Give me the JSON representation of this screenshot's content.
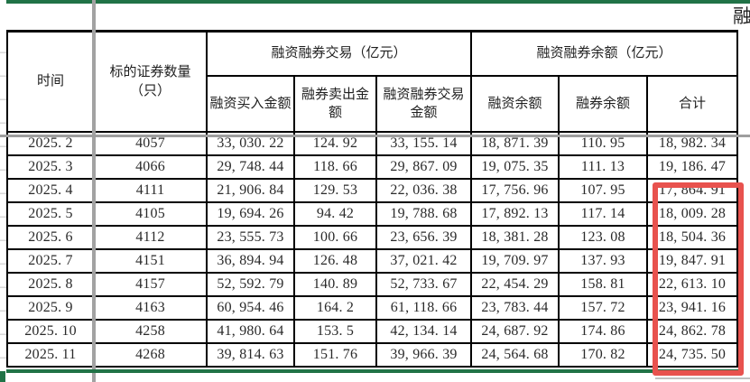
{
  "sheet": {
    "clipped_top_right_text": "融",
    "selection_border_color": "#217347",
    "pane_split_color": "#a2a2a2"
  },
  "table": {
    "header": {
      "time": "时间",
      "securities_count": "标的证券数量（只）",
      "trade_group": "融资融券交易（亿元）",
      "balance_group": "融资融券余额（亿元）",
      "sub": [
        "融资买入金额",
        "融券卖出金额",
        "融资融券交易金额",
        "融资余额",
        "融券余额",
        "合计"
      ]
    },
    "column_keys": [
      "time",
      "securities-count",
      "financing-buy-amount",
      "short-sell-amount",
      "margin-trade-amount",
      "financing-balance",
      "short-balance",
      "total"
    ],
    "rows": [
      [
        "2025. 2",
        "4057",
        "33, 030. 22",
        "124. 92",
        "33, 155. 14",
        "18, 871. 39",
        "110. 95",
        "18, 982. 34"
      ],
      [
        "2025. 3",
        "4066",
        "29, 748. 44",
        "118. 66",
        "29, 867. 09",
        "19, 075. 35",
        "111. 13",
        "19, 186. 47"
      ],
      [
        "2025. 4",
        "4111",
        "21, 906. 84",
        "129. 53",
        "22, 036. 38",
        "17, 756. 96",
        "107. 95",
        "17, 864. 91"
      ],
      [
        "2025. 5",
        "4105",
        "19, 694. 26",
        "94. 42",
        "19, 788. 68",
        "17, 892. 13",
        "117. 14",
        "18, 009. 28"
      ],
      [
        "2025. 6",
        "4112",
        "23, 555. 73",
        "100. 66",
        "23, 656. 39",
        "18, 381. 28",
        "123. 08",
        "18, 504. 36"
      ],
      [
        "2025. 7",
        "4151",
        "36, 894. 94",
        "126. 48",
        "37, 021. 42",
        "19, 709. 97",
        "137. 93",
        "19, 847. 91"
      ],
      [
        "2025. 8",
        "4157",
        "52, 592. 79",
        "140. 89",
        "52, 733. 67",
        "22, 454. 29",
        "158. 81",
        "22, 613. 10"
      ],
      [
        "2025. 9",
        "4163",
        "60, 954. 46",
        "164. 2",
        "61, 118. 66",
        "23, 783. 44",
        "157. 72",
        "23, 941. 16"
      ],
      [
        "2025. 10",
        "4258",
        "41, 980. 64",
        "153. 5",
        "42, 134. 14",
        "24, 687. 92",
        "174. 86",
        "24, 862. 78"
      ],
      [
        "2025. 11",
        "4268",
        "39, 814. 63",
        "151. 76",
        "39, 966. 39",
        "24, 564. 68",
        "170. 82",
        "24, 735. 50"
      ]
    ]
  },
  "annotations": {
    "red_box_highlight": {
      "color": "#e8524e",
      "column": "合计",
      "from_row": "2025. 4",
      "to_row": "2025. 11"
    }
  }
}
